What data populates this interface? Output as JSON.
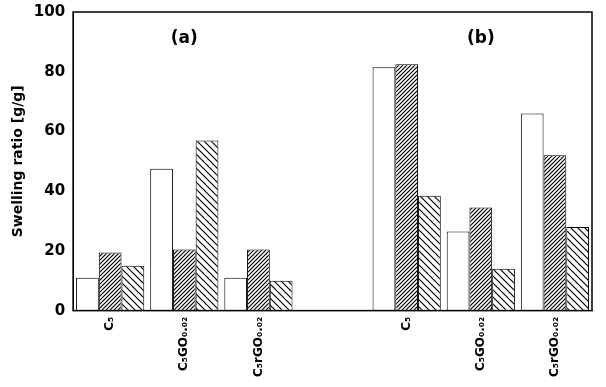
{
  "chart_data": {
    "type": "bar",
    "y_label": "Swelling ratio [g/g]",
    "categories": [
      "C₅",
      "C₅GO₀.₀₂",
      "C₅rGO₀.₀₂",
      null,
      "C₅",
      "C₅GO₀.₀₂",
      "C₅rGO₀.₀₂"
    ],
    "series": [
      {
        "color": "#ffffff",
        "values": [
          11,
          47.5,
          11,
          null,
          81.5,
          26.5,
          66
        ]
      },
      {
        "color": "#ffffff",
        "values": [
          19.5,
          20.5,
          20.5,
          null,
          82.5,
          34.5,
          52
        ]
      },
      {
        "color": "#ffffff",
        "values": [
          15,
          57,
          10,
          null,
          38.5,
          14,
          28
        ]
      }
    ],
    "ylim": [
      0,
      100
    ],
    "yticks": [
      0,
      20,
      40,
      60,
      80,
      100
    ],
    "grid": false,
    "annotations": [
      {
        "text": "(a)",
        "x": 1,
        "y": 91
      },
      {
        "text": "(b)",
        "x": 5,
        "y": 91
      }
    ]
  }
}
